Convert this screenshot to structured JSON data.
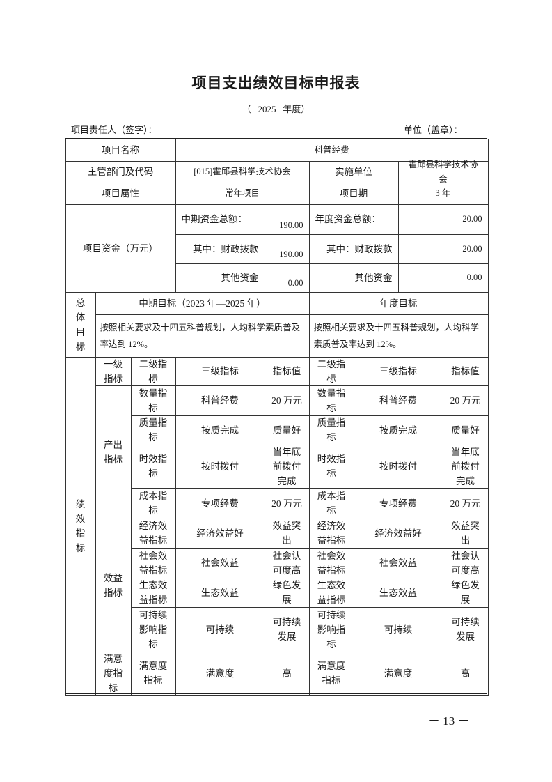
{
  "title": "项目支出绩效目标申报表",
  "year_line": "（   2025   年度）",
  "signer_label": "项目责任人（签字）：",
  "unit_label": "单位（盖章）：",
  "page_number": "－ 13 －",
  "project": {
    "name_label": "项目名称",
    "name_value": "科普经费",
    "dept_label": "主管部门及代码",
    "dept_value": "[015]霍邱县科学技术协会",
    "impl_label": "实施单位",
    "impl_value": "霍邱县科学技术协会",
    "attr_label": "项目属性",
    "attr_value": "常年项目",
    "period_label": "项目期",
    "period_value": "3 年"
  },
  "funds": {
    "label": "项目资金（万元）",
    "mid_total_label": "中期资金总额：",
    "mid_total_value": "190.00",
    "year_total_label": "年度资金总额：",
    "year_total_value": "20.00",
    "mid_fiscal_label": "其中：财政拨款",
    "mid_fiscal_value": "190.00",
    "year_fiscal_label": "其中：财政拨款",
    "year_fiscal_value": "20.00",
    "mid_other_label": "其他资金",
    "mid_other_value": "0.00",
    "year_other_label": "其他资金",
    "year_other_value": "0.00"
  },
  "goals": {
    "label": "总体目标",
    "mid_header": "中期目标（2023 年—2025 年）",
    "year_header": "年度目标",
    "mid_text": "按照相关要求及十四五科普规划，人均科学素质普及率达到 12%。",
    "year_text": "按照相关要求及十四五科普规划，人均科学素质普及率达到 12%。"
  },
  "indicators": {
    "label": "绩效指标",
    "headers": {
      "level1": "一级指标",
      "level2": "二级指标",
      "level3": "三级指标",
      "value": "指标值",
      "level2_y": "二级指标",
      "level3_y": "三级指标",
      "value_y": "指标值"
    },
    "groups": [
      "产出指标",
      "效益指标",
      "满意度指标"
    ],
    "rows": [
      {
        "l2": "数量指标",
        "l3": "科普经费",
        "v": "20 万元",
        "l2y": "数量指标",
        "l3y": "科普经费",
        "vy": "20 万元"
      },
      {
        "l2": "质量指标",
        "l3": "按质完成",
        "v": "质量好",
        "l2y": "质量指标",
        "l3y": "按质完成",
        "vy": "质量好"
      },
      {
        "l2": "时效指标",
        "l3": "按时拨付",
        "v": "当年底前拨付完成",
        "l2y": "时效指标",
        "l3y": "按时拨付",
        "vy": "当年底前拨付完成"
      },
      {
        "l2": "成本指标",
        "l3": "专项经费",
        "v": "20 万元",
        "l2y": "成本指标",
        "l3y": "专项经费",
        "vy": "20 万元"
      },
      {
        "l2": "经济效益指标",
        "l3": "经济效益好",
        "v": "效益突出",
        "l2y": "经济效益指标",
        "l3y": "经济效益好",
        "vy": "效益突出"
      },
      {
        "l2": "社会效益指标",
        "l3": "社会效益",
        "v": "社会认可度高",
        "l2y": "社会效益指标",
        "l3y": "社会效益",
        "vy": "社会认可度高"
      },
      {
        "l2": "生态效益指标",
        "l3": "生态效益",
        "v": "绿色发展",
        "l2y": "生态效益指标",
        "l3y": "生态效益",
        "vy": "绿色发展"
      },
      {
        "l2": "可持续影响指标",
        "l3": "可持续",
        "v": "可持续发展",
        "l2y": "可持续影响指标",
        "l3y": "可持续",
        "vy": "可持续发展"
      },
      {
        "l2": "满意度指标",
        "l3": "满意度",
        "v": "高",
        "l2y": "满意度指标",
        "l3y": "满意度",
        "vy": "高"
      }
    ]
  }
}
